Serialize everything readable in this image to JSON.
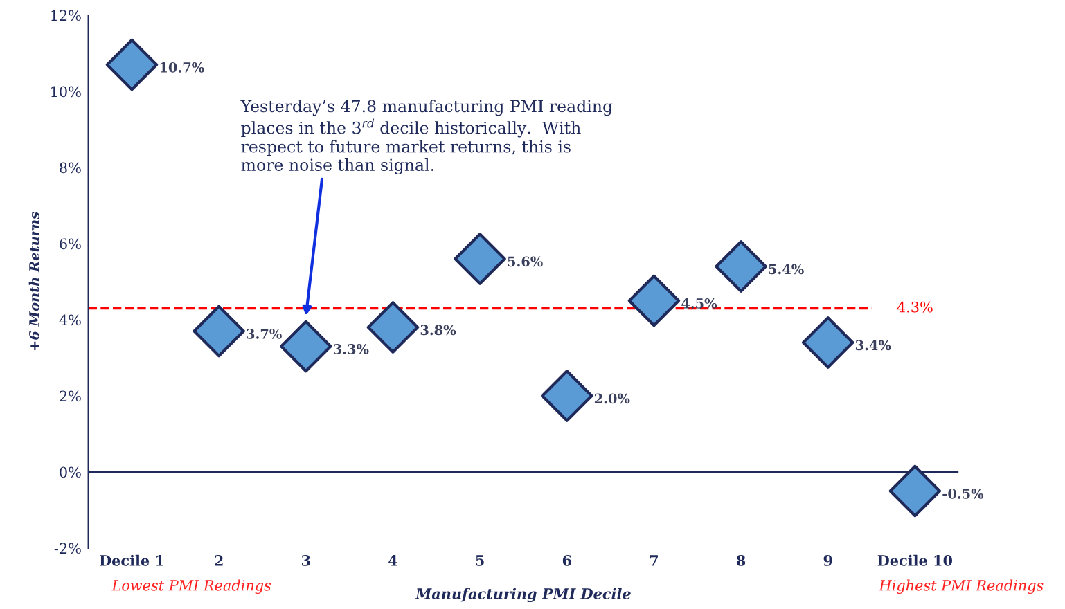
{
  "chart_data": {
    "type": "scatter",
    "xlabel": "Manufacturing PMI Decile",
    "ylabel": "+6 Month Returns",
    "categories": [
      "Decile 1",
      "2",
      "3",
      "4",
      "5",
      "6",
      "7",
      "8",
      "9",
      "Decile 10"
    ],
    "series": [
      {
        "color": "#5b9bd5",
        "values": [
          10.7,
          3.7,
          3.3,
          3.8,
          5.6,
          2.0,
          4.5,
          5.4,
          3.4,
          -0.5
        ],
        "value_labels": [
          "10.7%",
          "3.7%",
          "3.3%",
          "3.8%",
          "5.6%",
          "2.0%",
          "4.5%",
          "5.4%",
          "3.4%",
          "-0.5%"
        ]
      }
    ],
    "marker": "diamond",
    "grid": false,
    "legend": false,
    "ylim": [
      -2,
      12
    ],
    "yticks": [
      {
        "value": -2,
        "label": "-2%"
      },
      {
        "value": 0,
        "label": "0%"
      },
      {
        "value": 2,
        "label": "2%"
      },
      {
        "value": 4,
        "label": "4%"
      },
      {
        "value": 6,
        "label": "6%"
      },
      {
        "value": 8,
        "label": "8%"
      },
      {
        "value": 10,
        "label": "10%"
      },
      {
        "value": 12,
        "label": "12%"
      }
    ],
    "ref_lines": [
      {
        "axis": "y",
        "value": 4.3,
        "label": "4.3%",
        "color": "#ff0000",
        "line_style": "dashed"
      }
    ],
    "annotations": [
      {
        "text": "Yesterday’s 47.8 manufacturing PMI reading\nplaces in the 3$^{rd}$ decile historically.  With\nrespect to future market returns, this is\nmore noise than signal.",
        "x": "3",
        "y": 4.1
      },
      "Lowest PMI Readings",
      "Highest PMI Readings"
    ]
  }
}
